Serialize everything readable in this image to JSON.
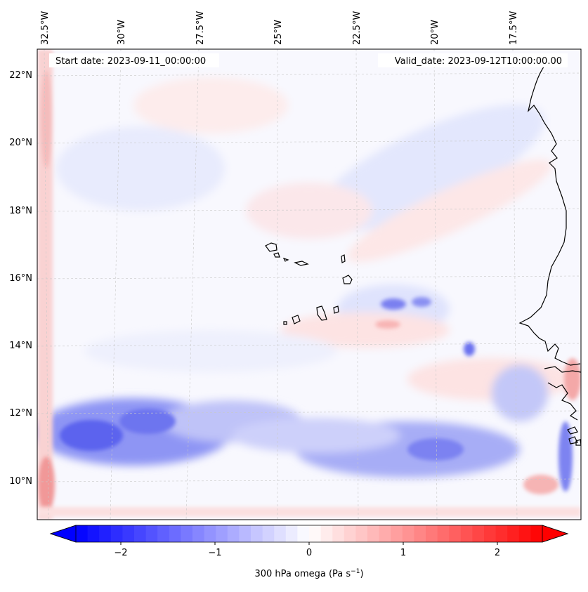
{
  "map": {
    "start_date": "Start date: 2023-09-11_00:00:00",
    "valid_date": "Valid_date: 2023-09-12T10:00:00.00",
    "lon_labels": [
      "32.5°W",
      "30°W",
      "27.5°W",
      "25°W",
      "22.5°W",
      "20°W",
      "17.5°W"
    ],
    "lat_labels": [
      "22°N",
      "20°N",
      "18°N",
      "16°N",
      "14°N",
      "12°N",
      "10°N"
    ],
    "gridlines": "dashed light gray",
    "field": "300 hPa omega",
    "features": [
      "Cape Verde islands",
      "West African coastline (Mauritania / Senegal / Gambia / Guinea-Bissau)"
    ]
  },
  "colorbar": {
    "tick_labels": [
      "−2",
      "−1",
      "0",
      "1",
      "2"
    ],
    "label_main": "300 hPa omega (Pa s",
    "label_sup": "−1",
    "label_end": ")",
    "range": [
      -2.7,
      2.7
    ],
    "colormap": "bwr",
    "extend": "both",
    "color_low": "#0000ff",
    "color_mid": "#ffffff",
    "color_high": "#ff0000"
  }
}
